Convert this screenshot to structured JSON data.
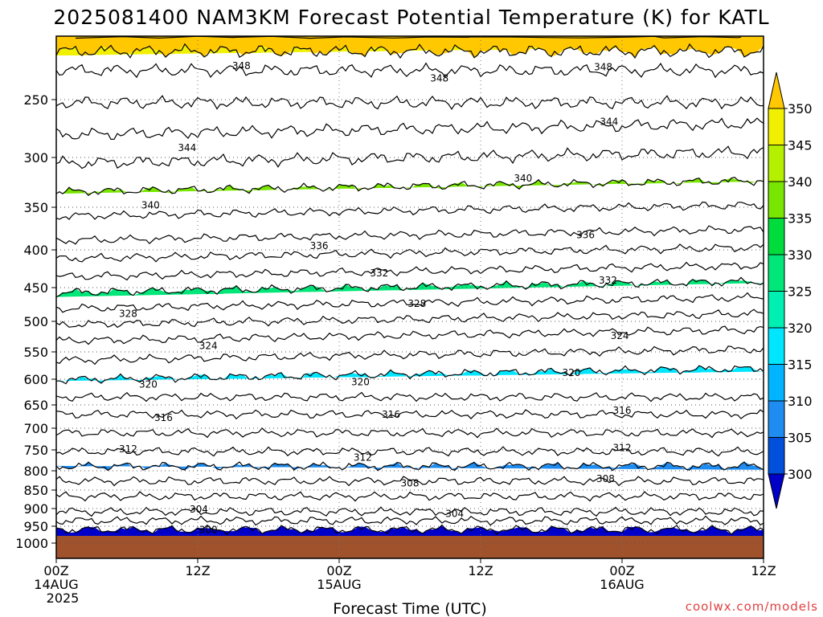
{
  "chart_data": {
    "type": "heatmap",
    "title": "2025081400 NAM3KM Forecast Potential Temperature (K) for KATL",
    "xlabel": "Forecast Time (UTC)",
    "ylabel": "",
    "y_scale": "log-pressure",
    "ylim": [
      1000,
      200
    ],
    "y_ticks": [
      250,
      300,
      350,
      400,
      450,
      500,
      550,
      600,
      650,
      700,
      750,
      800,
      850,
      900,
      950,
      1000
    ],
    "x_ticks": [
      {
        "hour": 0,
        "line1": "00Z",
        "line2": "14AUG",
        "line3": "2025"
      },
      {
        "hour": 12,
        "line1": "12Z",
        "line2": "",
        "line3": ""
      },
      {
        "hour": 24,
        "line1": "00Z",
        "line2": "15AUG",
        "line3": ""
      },
      {
        "hour": 36,
        "line1": "12Z",
        "line2": "",
        "line3": ""
      },
      {
        "hour": 48,
        "line1": "00Z",
        "line2": "16AUG",
        "line3": ""
      },
      {
        "hour": 60,
        "line1": "12Z",
        "line2": "",
        "line3": ""
      }
    ],
    "xlim": [
      0,
      60
    ],
    "colorbar": {
      "levels": [
        300,
        305,
        310,
        315,
        320,
        325,
        330,
        335,
        340,
        345,
        350
      ],
      "colors": [
        "#0000c8",
        "#0050dc",
        "#1e8cf0",
        "#00b4ff",
        "#00e6ff",
        "#00f0b4",
        "#00e678",
        "#00dc3c",
        "#78e600",
        "#b4f000",
        "#f0f000",
        "#ffc800"
      ]
    },
    "contour_interval": 4,
    "contour_labels": [
      {
        "value": 348,
        "hour": 15.7,
        "p": 222
      },
      {
        "value": 348,
        "hour": 32.5,
        "p": 232
      },
      {
        "value": 348,
        "hour": 46.4,
        "p": 223
      },
      {
        "value": 344,
        "hour": 11.1,
        "p": 291
      },
      {
        "value": 344,
        "hour": 46.9,
        "p": 268
      },
      {
        "value": 340,
        "hour": 8.0,
        "p": 348
      },
      {
        "value": 340,
        "hour": 39.6,
        "p": 320
      },
      {
        "value": 336,
        "hour": 22.3,
        "p": 395
      },
      {
        "value": 336,
        "hour": 44.9,
        "p": 382
      },
      {
        "value": 332,
        "hour": 27.4,
        "p": 430
      },
      {
        "value": 332,
        "hour": 46.8,
        "p": 440
      },
      {
        "value": 328,
        "hour": 6.1,
        "p": 488
      },
      {
        "value": 328,
        "hour": 30.6,
        "p": 473
      },
      {
        "value": 324,
        "hour": 12.9,
        "p": 540
      },
      {
        "value": 324,
        "hour": 47.8,
        "p": 523
      },
      {
        "value": 320,
        "hour": 7.8,
        "p": 610
      },
      {
        "value": 320,
        "hour": 25.8,
        "p": 605
      },
      {
        "value": 320,
        "hour": 43.7,
        "p": 588
      },
      {
        "value": 316,
        "hour": 9.1,
        "p": 677
      },
      {
        "value": 316,
        "hour": 28.4,
        "p": 670
      },
      {
        "value": 316,
        "hour": 48.0,
        "p": 662
      },
      {
        "value": 312,
        "hour": 6.1,
        "p": 748
      },
      {
        "value": 312,
        "hour": 26.0,
        "p": 768
      },
      {
        "value": 312,
        "hour": 48.0,
        "p": 745
      },
      {
        "value": 308,
        "hour": 30.0,
        "p": 832
      },
      {
        "value": 308,
        "hour": 46.6,
        "p": 820
      },
      {
        "value": 304,
        "hour": 12.1,
        "p": 902
      },
      {
        "value": 304,
        "hour": 33.8,
        "p": 915
      },
      {
        "value": 300,
        "hour": 12.9,
        "p": 960
      }
    ]
  },
  "credit": "coolwx.com/models"
}
